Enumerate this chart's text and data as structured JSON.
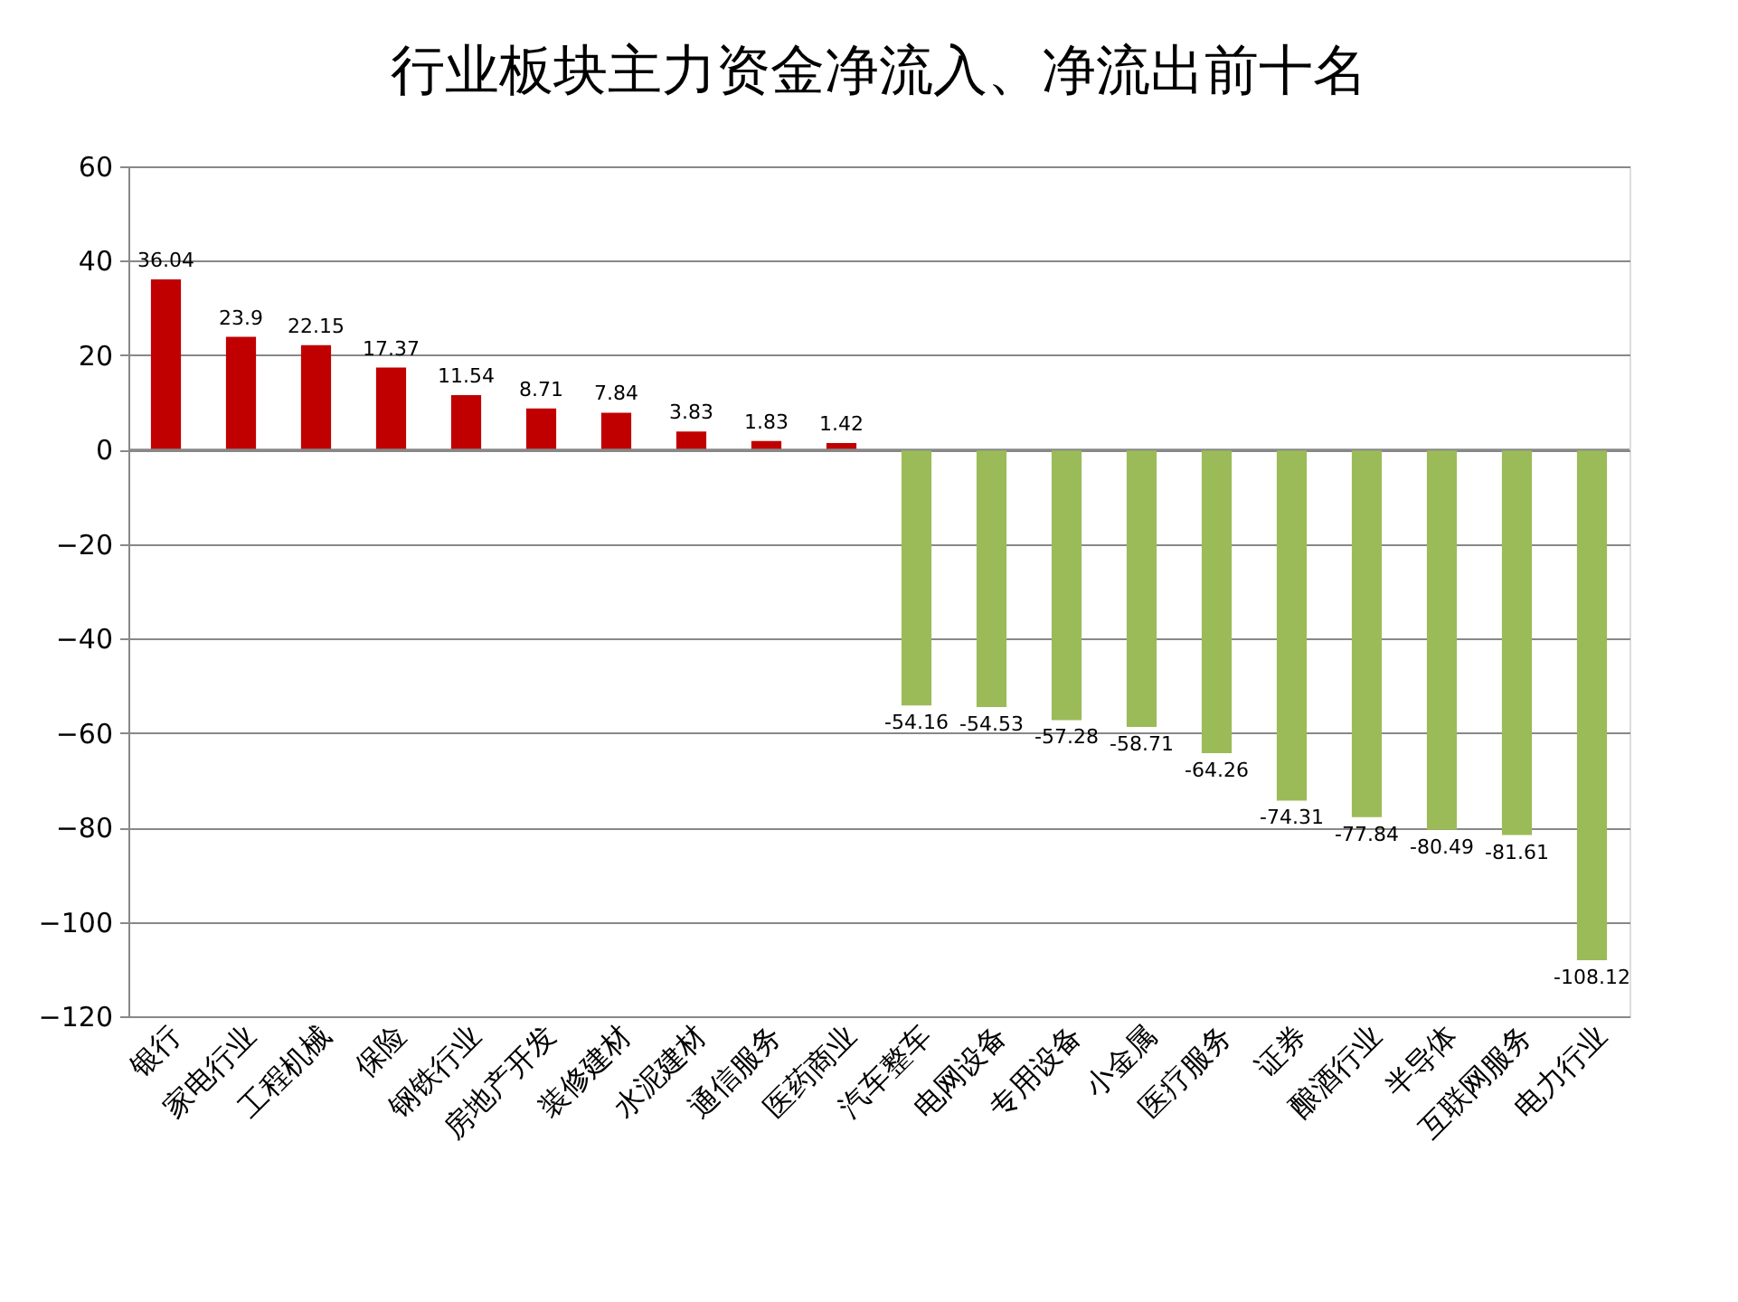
{
  "chart_data": {
    "type": "bar",
    "title": "行业板块主力资金净流入、净流出前十名",
    "categories": [
      "银行",
      "家电行业",
      "工程机械",
      "保险",
      "钢铁行业",
      "房地产开发",
      "装修建材",
      "水泥建材",
      "通信服务",
      "医药商业",
      "汽车整车",
      "电网设备",
      "专用设备",
      "小金属",
      "医疗服务",
      "证券",
      "酿酒行业",
      "半导体",
      "互联网服务",
      "电力行业"
    ],
    "values": [
      36.04,
      23.9,
      22.15,
      17.37,
      11.54,
      8.71,
      7.84,
      3.83,
      1.83,
      1.42,
      -54.16,
      -54.53,
      -57.28,
      -58.71,
      -64.26,
      -74.31,
      -77.84,
      -80.49,
      -81.61,
      -108.12
    ],
    "colors": [
      "#c00000",
      "#c00000",
      "#c00000",
      "#c00000",
      "#c00000",
      "#c00000",
      "#c00000",
      "#c00000",
      "#c00000",
      "#c00000",
      "#9bbb59",
      "#9bbb59",
      "#9bbb59",
      "#9bbb59",
      "#9bbb59",
      "#9bbb59",
      "#9bbb59",
      "#9bbb59",
      "#9bbb59",
      "#9bbb59"
    ],
    "ylim": [
      -120,
      60
    ],
    "yticks": [
      -120,
      -100,
      -80,
      -60,
      -40,
      -20,
      0,
      20,
      40,
      60
    ],
    "grid": "y",
    "data_labels": true
  }
}
